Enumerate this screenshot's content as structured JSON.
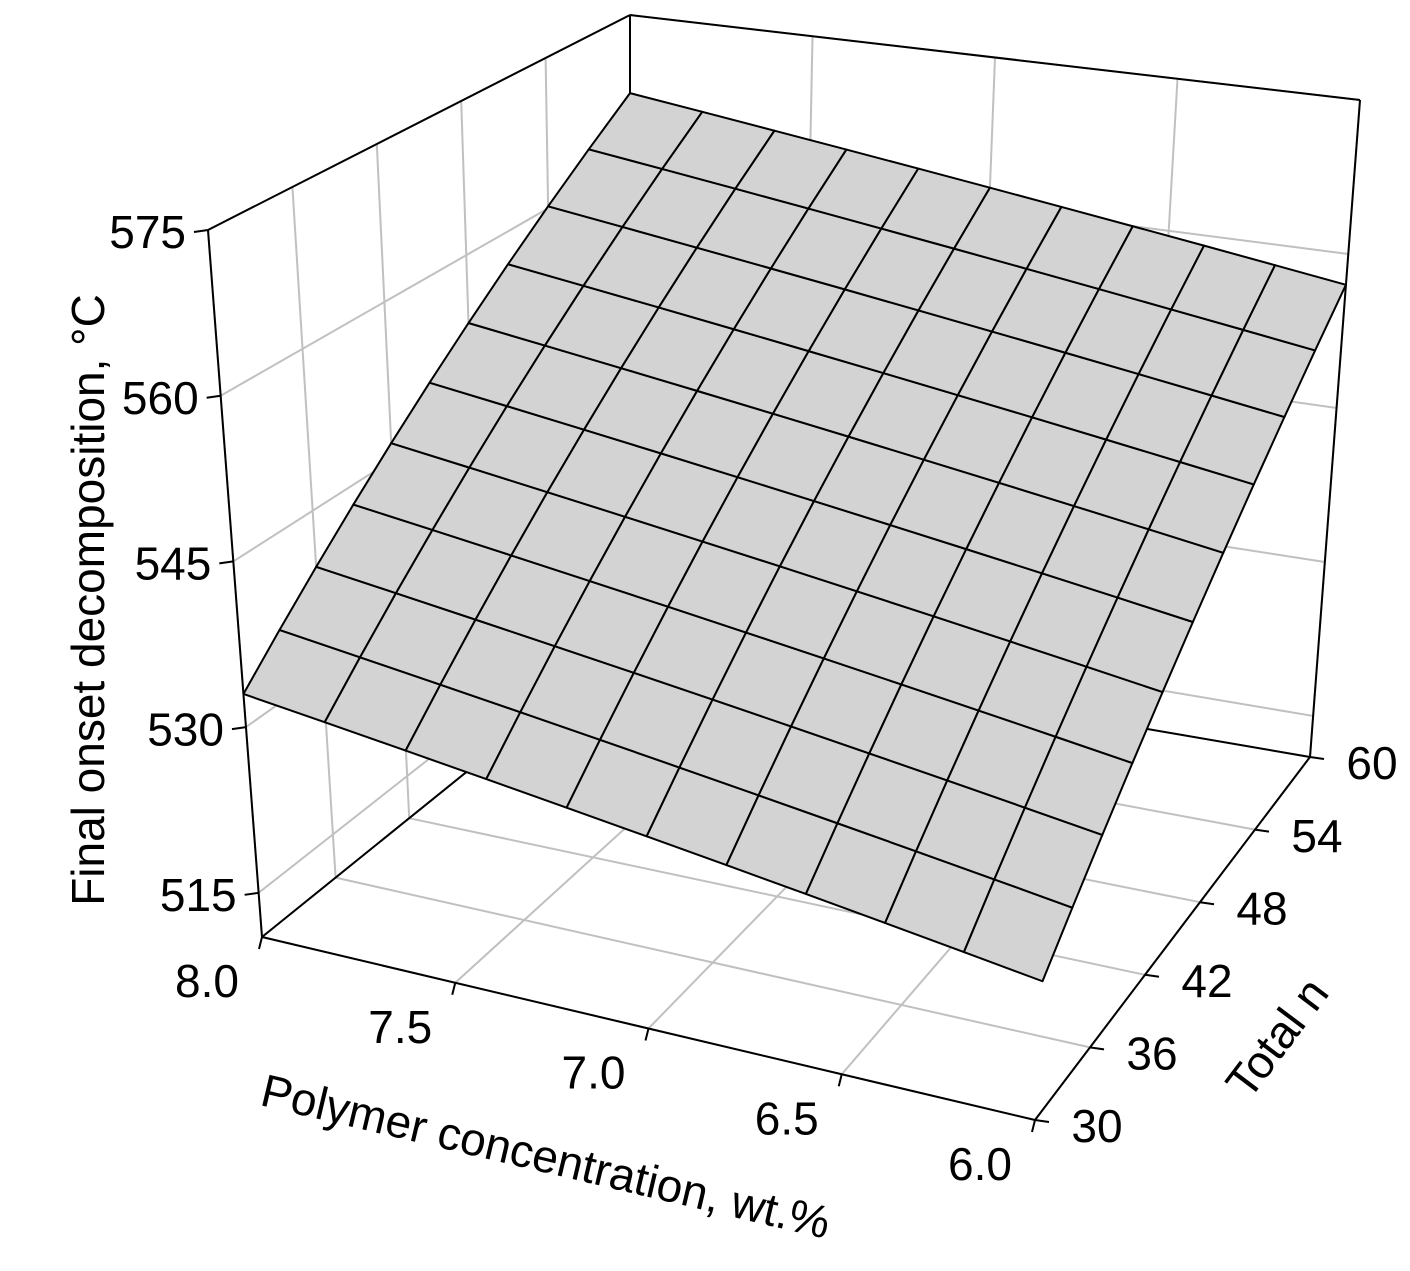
{
  "chart_data": {
    "type": "surface",
    "xlabel": "Polymer concentration, wt.%",
    "ylabel": "Total n",
    "zlabel": "Final onset decomposition, °C",
    "x": [
      8.0,
      7.8,
      7.6,
      7.4,
      7.2,
      7.0,
      6.8,
      6.6,
      6.4,
      6.2,
      6.0
    ],
    "y": [
      30,
      33,
      36,
      39,
      42,
      45,
      48,
      51,
      54,
      57,
      60
    ],
    "z": [
      [
        533,
        532,
        531,
        530,
        529,
        528,
        527,
        526,
        525,
        524,
        523
      ],
      [
        536.4,
        535.4,
        534.4,
        533.4,
        532.4,
        531.4,
        530.4,
        529.4,
        528.4,
        527.4,
        526.4
      ],
      [
        539.8,
        538.8,
        537.8,
        536.8,
        535.8,
        534.8,
        533.8,
        532.8,
        531.8,
        530.8,
        529.8
      ],
      [
        543.2,
        542.2,
        541.2,
        540.2,
        539.2,
        538.2,
        537.2,
        536.2,
        535.2,
        534.2,
        533.2
      ],
      [
        546.6,
        545.6,
        544.6,
        543.6,
        542.6,
        541.6,
        540.6,
        539.6,
        538.6,
        537.6,
        536.6
      ],
      [
        550,
        549,
        548,
        547,
        546,
        545,
        544,
        543,
        542,
        541,
        540
      ],
      [
        553.4,
        552.4,
        551.4,
        550.4,
        549.4,
        548.4,
        547.4,
        546.4,
        545.4,
        544.4,
        543.4
      ],
      [
        556.8,
        555.8,
        554.8,
        553.8,
        552.8,
        551.8,
        550.8,
        549.8,
        548.8,
        547.8,
        546.8
      ],
      [
        560.2,
        559.2,
        558.2,
        557.2,
        556.2,
        555.2,
        554.2,
        553.2,
        552.2,
        551.2,
        550.2
      ],
      [
        563.6,
        562.6,
        561.6,
        560.6,
        559.6,
        558.6,
        557.6,
        556.6,
        555.6,
        554.6,
        553.6
      ],
      [
        567,
        566,
        565,
        564,
        563,
        562,
        561,
        560,
        559,
        558,
        557
      ]
    ],
    "xlim": [
      8.0,
      6.0
    ],
    "xticks": [
      {
        "value": 8.0,
        "label": "8.0"
      },
      {
        "value": 7.5,
        "label": "7.5"
      },
      {
        "value": 7.0,
        "label": "7.0"
      },
      {
        "value": 6.5,
        "label": "6.5"
      },
      {
        "value": 6.0,
        "label": "6.0"
      }
    ],
    "ylim": [
      30,
      60
    ],
    "yticks": [
      30,
      36,
      42,
      48,
      54,
      60
    ],
    "zlim": [
      511,
      575
    ],
    "zticks": [
      515,
      530,
      545,
      560,
      575
    ],
    "color": "#d3d3d3",
    "edge_color": "#000000",
    "grid": true
  }
}
